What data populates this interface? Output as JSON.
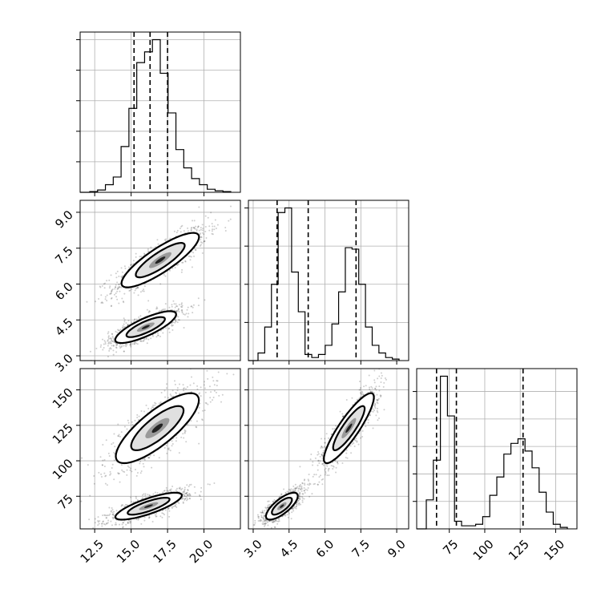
{
  "chart_data": {
    "type": "corner",
    "grid": true,
    "parameters": [
      {
        "ticks": [
          12.5,
          15.0,
          17.5,
          20.0
        ],
        "tick_labels": [
          "12.5",
          "15.0",
          "17.5",
          "20.0"
        ],
        "range": [
          11.5,
          22.5
        ],
        "quantiles": [
          15.2,
          16.3,
          17.5
        ],
        "hist": [
          0.005,
          0.015,
          0.05,
          0.1,
          0.3,
          0.55,
          0.85,
          0.92,
          1.0,
          0.78,
          0.52,
          0.28,
          0.16,
          0.09,
          0.05,
          0.02,
          0.01,
          0.005
        ]
      },
      {
        "ticks": [
          3.0,
          4.5,
          6.0,
          7.5,
          9.0
        ],
        "tick_labels": [
          "3.0",
          "4.5",
          "6.0",
          "7.5",
          "9.0"
        ],
        "range": [
          2.8,
          9.5
        ],
        "quantiles": [
          4.0,
          5.3,
          7.3
        ],
        "hist": [
          0.05,
          0.22,
          0.5,
          0.97,
          1.0,
          0.58,
          0.32,
          0.04,
          0.02,
          0.04,
          0.1,
          0.24,
          0.45,
          0.74,
          0.73,
          0.5,
          0.22,
          0.1,
          0.05,
          0.02,
          0.01
        ]
      },
      {
        "ticks": [
          75,
          100,
          125,
          150
        ],
        "tick_labels": [
          "75",
          "100",
          "125",
          "150"
        ],
        "range": [
          52,
          165
        ],
        "quantiles": [
          66,
          80,
          127
        ],
        "hist": [
          0.19,
          0.45,
          1.0,
          0.74,
          0.05,
          0.02,
          0.02,
          0.03,
          0.08,
          0.22,
          0.34,
          0.49,
          0.56,
          0.59,
          0.51,
          0.4,
          0.24,
          0.11,
          0.03,
          0.01
        ]
      }
    ],
    "hist_yticks": {
      "0": [
        0.2,
        0.4,
        0.6,
        0.8,
        1.0
      ],
      "1": [
        0.25,
        0.5,
        0.75,
        1.0
      ],
      "2": [
        0.18,
        0.36,
        0.54,
        0.72,
        0.9
      ]
    },
    "clusters_xy": [
      {
        "x": 17.0,
        "y": 7.0,
        "sx": 1.4,
        "sy": 0.6,
        "rho": 0.85
      },
      {
        "x": 16.0,
        "y": 4.2,
        "sx": 1.1,
        "sy": 0.35,
        "rho": 0.8
      }
    ],
    "clusters_xz": [
      {
        "x": 16.8,
        "y": 123,
        "sx": 1.5,
        "sy": 13,
        "rho": 0.8
      },
      {
        "x": 16.2,
        "y": 68,
        "sx": 1.2,
        "sy": 5,
        "rho": 0.8
      }
    ],
    "clusters_yz": [
      {
        "x": 7.0,
        "y": 123,
        "sx": 0.55,
        "sy": 13,
        "rho": 0.88
      },
      {
        "x": 4.2,
        "y": 68,
        "sx": 0.35,
        "sy": 5,
        "rho": 0.75
      }
    ]
  }
}
